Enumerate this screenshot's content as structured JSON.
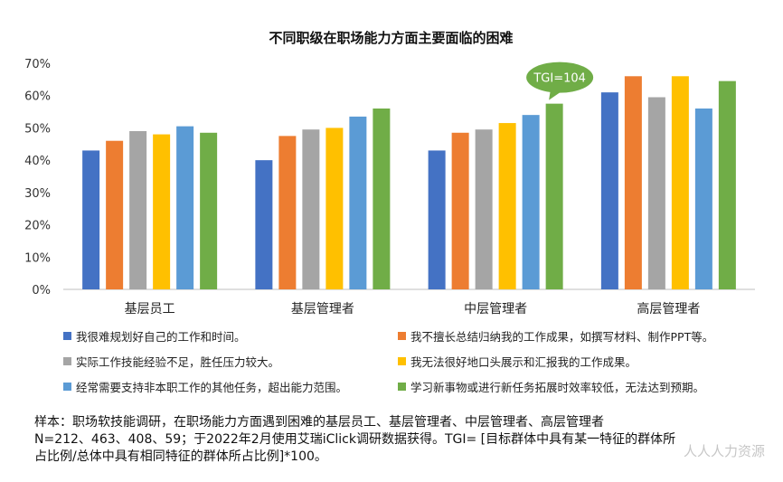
{
  "chart_data": {
    "type": "bar",
    "title": "不同职级在职场能力方面主要面临的困难",
    "categories": [
      "基层员工",
      "基层管理者",
      "中层管理者",
      "高层管理者"
    ],
    "ylim": [
      0,
      70
    ],
    "yticks": [
      "0%",
      "10%",
      "20%",
      "30%",
      "40%",
      "50%",
      "60%",
      "70%"
    ],
    "legend_position": "bottom",
    "series": [
      {
        "name": "我很难规划好自己的工作和时间。",
        "color": "#4472C4",
        "values": [
          43,
          40,
          43,
          61
        ]
      },
      {
        "name": "我不擅长总结归纳我的工作成果，如撰写材料、制作PPT等。",
        "color": "#ED7D31",
        "values": [
          46,
          47.5,
          48.5,
          66
        ]
      },
      {
        "name": "实际工作技能经验不足，胜任压力较大。",
        "color": "#A5A5A5",
        "values": [
          49,
          49.5,
          49.5,
          59.5
        ]
      },
      {
        "name": "我无法很好地口头展示和汇报我的工作成果。",
        "color": "#FFC000",
        "values": [
          48,
          50,
          51.5,
          66
        ]
      },
      {
        "name": "经常需要支持非本职工作的其他任务，超出能力范围。",
        "color": "#5B9BD5",
        "values": [
          50.5,
          53.5,
          54,
          56
        ]
      },
      {
        "name": "学习新事物或进行新任务拓展时效率较低，无法达到预期。",
        "color": "#70AD47",
        "values": [
          48.5,
          56,
          57.5,
          64.5
        ]
      }
    ],
    "annotation": {
      "text": "TGI=104",
      "category_index": 2,
      "series_index": 5,
      "color": "#70AD47"
    }
  },
  "note": "样本：职场软技能调研，在职场能力方面遇到困难的基层员工、基层管理者、中层管理者、高层管理者\nN=212、463、408、59；于2022年2月使用艾瑞iClick调研数据获得。TGI= [目标群体中具有某一特征的群体所\n占比例/总体中具有相同特征的群体所占比例]*100。",
  "watermark": "人人人力资源"
}
